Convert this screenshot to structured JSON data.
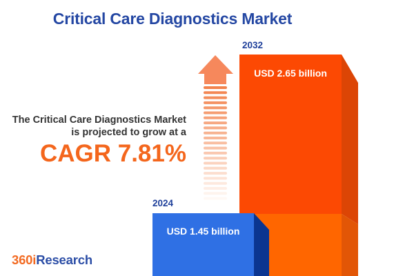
{
  "title": "Critical Care Diagnostics Market",
  "description": {
    "line1": "The Critical Care Diagnostics Market",
    "line2": "is projected to grow at a",
    "cagr_label": "CAGR 7.81%"
  },
  "logo": {
    "part1": "360i",
    "part2": "Research"
  },
  "chart_data": {
    "type": "bar",
    "title": "Critical Care Diagnostics Market",
    "unit": "USD billion",
    "categories": [
      "2024",
      "2032"
    ],
    "values": [
      1.45,
      2.65
    ],
    "value_labels": [
      "USD 1.45 billion",
      "USD 2.65 billion"
    ],
    "cagr_percent": 7.81,
    "legend": "none",
    "axes": "none",
    "bars": [
      {
        "year": "2024",
        "value": 1.45,
        "value_label": "USD 1.45 billion",
        "front_color": "#2F70E4",
        "side_color": "#0B3590"
      },
      {
        "year": "2032",
        "value": 2.65,
        "value_label": "USD 2.65 billion",
        "front_color_top": "#FC4903",
        "front_color_bottom": "#FF6600",
        "side_color_top": "#DC4505",
        "side_color_bottom": "#E25606"
      }
    ]
  },
  "arrow": {
    "head_color": "#F6885C",
    "stripe_color_start": "#F2824C",
    "stripe_color_end": "#FFF9F5"
  },
  "colors": {
    "background": "#FFFFFF",
    "title_blue": "#2447A3",
    "year_label_blue": "#1E3F9A",
    "body_text": "#333333",
    "accent_orange": "#F4661C",
    "logo_orange": "#F26A22",
    "logo_blue": "#2B4DA6"
  }
}
